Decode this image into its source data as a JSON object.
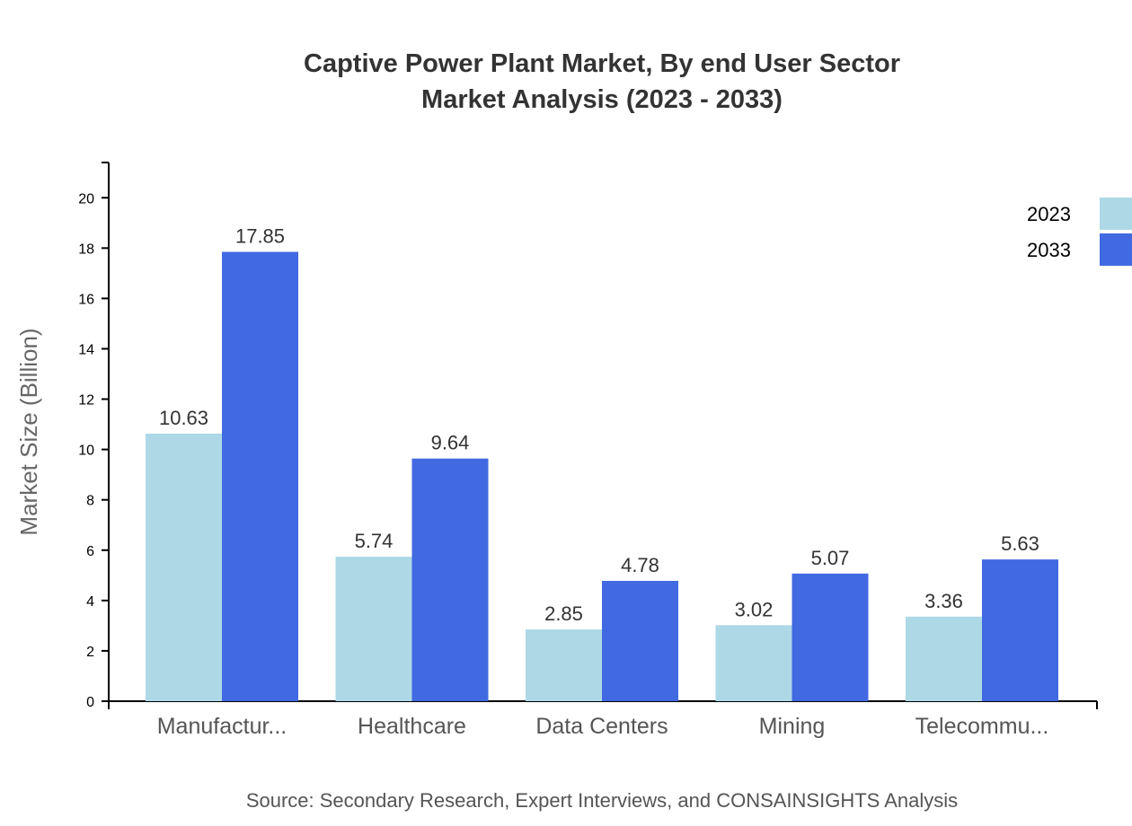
{
  "chart_data": {
    "type": "bar",
    "title": [
      "Captive Power Plant Market, By end User Sector",
      "Market Analysis (2023 - 2033)"
    ],
    "ylabel": "Market Size (Billion)",
    "xlabel": "",
    "categories": [
      "Manufactur...",
      "Healthcare",
      "Data Centers",
      "Mining",
      "Telecommu..."
    ],
    "series": [
      {
        "name": "2023",
        "color": "#add8e6",
        "values": [
          10.63,
          5.74,
          2.85,
          3.02,
          3.36
        ]
      },
      {
        "name": "2033",
        "color": "#4169e1",
        "values": [
          17.85,
          9.64,
          4.78,
          5.07,
          5.63
        ]
      }
    ],
    "ylim": [
      0,
      21.4
    ],
    "yticks": [
      0,
      2,
      4,
      6,
      8,
      10,
      12,
      14,
      16,
      18,
      20
    ],
    "grid": false,
    "legend": "top-right",
    "source": "Source: Secondary Research, Expert Interviews, and CONSAINSIGHTS Analysis"
  }
}
